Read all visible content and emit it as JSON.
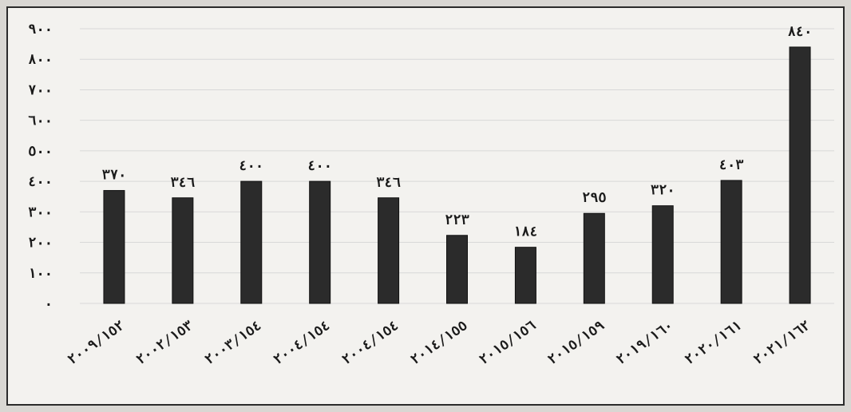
{
  "chart_data": {
    "type": "bar",
    "categories": [
      "٢٠٠٩/١٥٢",
      "٢٠٠٢/١٥٣",
      "٢٠٠٣/١٥٤",
      "٢٠٠٤/١٥٤",
      "٢٠٠٤/١٥٤",
      "٢٠١٤/١٥٥",
      "٢٠١٥/١٥٦",
      "٢٠١٥/١٥٩",
      "٢٠١٩/١٦٠",
      "٢٠٢٠/١٦١",
      "٢٠٢١/١٦٢"
    ],
    "values": [
      370,
      346,
      400,
      400,
      346,
      223,
      184,
      295,
      320,
      403,
      840
    ],
    "data_labels": [
      "٣٧٠",
      "٣٤٦",
      "٤٠٠",
      "٤٠٠",
      "٣٤٦",
      "٢٢٣",
      "١٨٤",
      "٢٩٥",
      "٣٢٠",
      "٤٠٣",
      "٨٤٠"
    ],
    "y_ticks": [
      {
        "value": 0,
        "label": "٠"
      },
      {
        "value": 100,
        "label": "١٠٠"
      },
      {
        "value": 200,
        "label": "٢٠٠"
      },
      {
        "value": 300,
        "label": "٣٠٠"
      },
      {
        "value": 400,
        "label": "٤٠٠"
      },
      {
        "value": 500,
        "label": "٥٠٠"
      },
      {
        "value": 600,
        "label": "٦٠٠"
      },
      {
        "value": 700,
        "label": "٧٠٠"
      },
      {
        "value": 800,
        "label": "٨٠٠"
      },
      {
        "value": 900,
        "label": "٩٠٠"
      }
    ],
    "ylim": [
      0,
      900
    ],
    "grid": true,
    "legend": "none",
    "title": "",
    "xlabel": "",
    "ylabel": "",
    "bar_color": "#2b2b2b",
    "grid_color": "#d8d8d8"
  }
}
